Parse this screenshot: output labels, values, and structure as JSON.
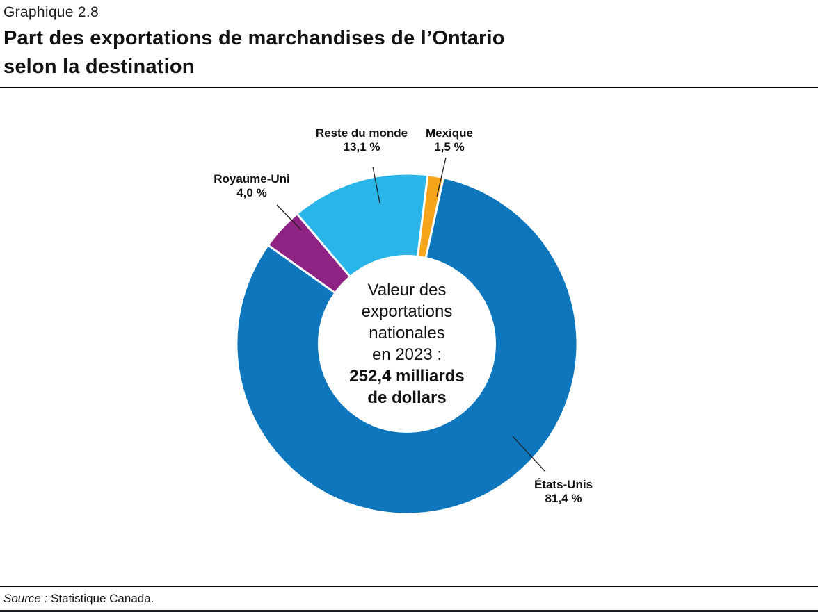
{
  "header": {
    "figure_label": "Graphique 2.8",
    "title_line1": "Part des exportations de marchandises de l’Ontario",
    "title_line2": "selon la destination"
  },
  "chart_data": {
    "type": "pie",
    "donut": true,
    "title": "Part des exportations de marchandises de l’Ontario selon la destination",
    "start_angle_deg": 7,
    "direction": "clockwise",
    "legend_position": "none",
    "center_label": {
      "lines": [
        "Valeur des",
        "exportations",
        "nationales",
        "en 2023 :"
      ],
      "value_lines": [
        "252,4 milliards",
        "de dollars"
      ]
    },
    "slices": [
      {
        "label": "Mexique",
        "value": 1.5,
        "display": "1,5 %",
        "color": "#F9A51B"
      },
      {
        "label": "États-Unis",
        "value": 81.4,
        "display": "81,4 %",
        "color": "#0E76BD"
      },
      {
        "label": "Royaume-Uni",
        "value": 4.0,
        "display": "4,0 %",
        "color": "#8E2383"
      },
      {
        "label": "Reste du monde",
        "value": 13.1,
        "display": "13,1 %",
        "color": "#29B5E8"
      }
    ]
  },
  "footer": {
    "source_prefix": "Source :",
    "source_text": "Statistique Canada."
  }
}
